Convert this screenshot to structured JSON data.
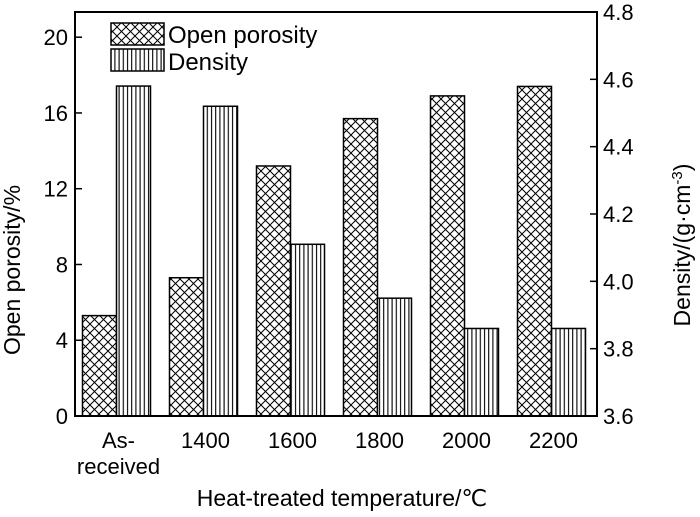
{
  "chart_data": {
    "type": "bar",
    "categories": [
      "As-\nreceived",
      "1400",
      "1600",
      "1800",
      "2000",
      "2200"
    ],
    "series": [
      {
        "name": "Open porosity",
        "axis": "left",
        "pattern": "crosshatch",
        "values": [
          5.3,
          7.3,
          13.2,
          15.7,
          16.9,
          17.4
        ]
      },
      {
        "name": "Density",
        "axis": "right",
        "pattern": "vertical-lines",
        "values": [
          4.58,
          4.52,
          4.11,
          3.95,
          3.86,
          3.86
        ]
      }
    ],
    "xlabel": "Heat-treated temperature/℃",
    "ylabel": "Open porosity/%",
    "ylabel_right": "Density/(g·cm",
    "ylabel_right_sup": "-3",
    "ylabel_right_close": ")",
    "ylim": [
      0,
      21.33
    ],
    "ylim_right": [
      3.6,
      4.8
    ],
    "yticks": [
      "0",
      "4",
      "8",
      "12",
      "16",
      "20"
    ],
    "yticks_right": [
      "3.6",
      "3.8",
      "4.0",
      "4.2",
      "4.4",
      "4.6",
      "4.8"
    ],
    "legend_placement": "top-left",
    "grid": false
  }
}
